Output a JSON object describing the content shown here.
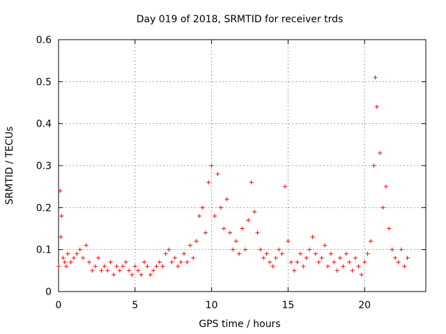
{
  "chart_data": {
    "type": "scatter",
    "title": "Day 019 of 2018, SRMTID for receiver trds",
    "xlabel": "GPS time / hours",
    "ylabel": "SRMTID / TECUs",
    "xlim": [
      0,
      24
    ],
    "ylim": [
      0,
      0.6
    ],
    "x_ticks": [
      0,
      5,
      10,
      15,
      20
    ],
    "x_tick_labels": [
      "0",
      "5",
      "10",
      "15",
      "20"
    ],
    "y_ticks": [
      0,
      0.1,
      0.2,
      0.3,
      0.4,
      0.5,
      0.6
    ],
    "y_tick_labels": [
      "0",
      "0.1",
      "0.2",
      "0.3",
      "0.4",
      "0.5",
      "0.6"
    ],
    "grid": true,
    "marker": "plus",
    "series": [
      {
        "name": "SRMTID",
        "color": "#ff0000",
        "x": [
          0.0,
          0.1,
          0.15,
          0.2,
          0.3,
          0.4,
          0.5,
          0.6,
          0.8,
          1.0,
          1.2,
          1.4,
          1.6,
          1.8,
          2.0,
          2.2,
          2.4,
          2.6,
          2.8,
          3.0,
          3.2,
          3.4,
          3.6,
          3.8,
          4.0,
          4.2,
          4.4,
          4.6,
          4.8,
          5.0,
          5.2,
          5.4,
          5.6,
          5.8,
          6.0,
          6.2,
          6.4,
          6.6,
          6.8,
          7.0,
          7.2,
          7.4,
          7.6,
          7.8,
          8.0,
          8.2,
          8.4,
          8.6,
          8.8,
          9.0,
          9.2,
          9.4,
          9.6,
          9.8,
          10.0,
          10.2,
          10.4,
          10.6,
          10.8,
          11.0,
          11.2,
          11.4,
          11.6,
          11.8,
          12.0,
          12.2,
          12.4,
          12.6,
          12.8,
          13.0,
          13.2,
          13.4,
          13.6,
          13.8,
          14.0,
          14.2,
          14.4,
          14.6,
          14.8,
          15.0,
          15.2,
          15.4,
          15.6,
          15.8,
          16.0,
          16.2,
          16.4,
          16.6,
          16.8,
          17.0,
          17.2,
          17.4,
          17.6,
          17.8,
          18.0,
          18.2,
          18.4,
          18.6,
          18.8,
          19.0,
          19.2,
          19.4,
          19.6,
          19.8,
          20.0,
          20.2,
          20.4,
          20.6,
          20.7,
          20.8,
          21.0,
          21.2,
          21.4,
          21.6,
          21.8,
          22.0,
          22.2,
          22.4,
          22.6,
          22.8
        ],
        "y": [
          0.06,
          0.24,
          0.13,
          0.18,
          0.08,
          0.07,
          0.06,
          0.09,
          0.07,
          0.08,
          0.09,
          0.1,
          0.08,
          0.11,
          0.07,
          0.05,
          0.06,
          0.08,
          0.05,
          0.06,
          0.05,
          0.07,
          0.04,
          0.06,
          0.05,
          0.06,
          0.07,
          0.05,
          0.04,
          0.06,
          0.05,
          0.04,
          0.07,
          0.06,
          0.04,
          0.05,
          0.06,
          0.07,
          0.06,
          0.09,
          0.1,
          0.07,
          0.08,
          0.06,
          0.07,
          0.09,
          0.07,
          0.11,
          0.08,
          0.12,
          0.18,
          0.2,
          0.14,
          0.26,
          0.3,
          0.18,
          0.28,
          0.2,
          0.15,
          0.22,
          0.14,
          0.1,
          0.12,
          0.09,
          0.15,
          0.1,
          0.17,
          0.26,
          0.19,
          0.14,
          0.1,
          0.08,
          0.09,
          0.07,
          0.06,
          0.08,
          0.1,
          0.09,
          0.25,
          0.12,
          0.07,
          0.05,
          0.07,
          0.09,
          0.06,
          0.08,
          0.1,
          0.13,
          0.09,
          0.07,
          0.08,
          0.11,
          0.06,
          0.09,
          0.07,
          0.05,
          0.08,
          0.06,
          0.09,
          0.07,
          0.05,
          0.08,
          0.06,
          0.04,
          0.07,
          0.09,
          0.12,
          0.3,
          0.51,
          0.44,
          0.33,
          0.2,
          0.25,
          0.15,
          0.1,
          0.08,
          0.07,
          0.1,
          0.06,
          0.08
        ]
      }
    ]
  }
}
